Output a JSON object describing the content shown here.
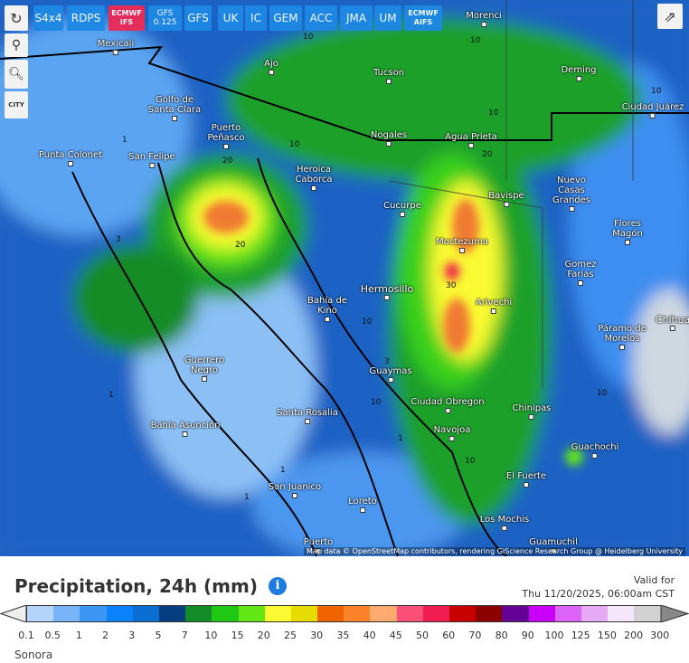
{
  "toolbar": {
    "models": [
      {
        "label": "S4x4",
        "active": false
      },
      {
        "label": "RDPS"
      },
      {
        "label": "ECMWF IFS",
        "active": true
      },
      {
        "label": "GFS 0.125"
      },
      {
        "label": "GFS"
      },
      {
        "label": "UK"
      },
      {
        "label": "IC"
      },
      {
        "label": "GEM"
      },
      {
        "label": "ACC"
      },
      {
        "label": "JMA"
      },
      {
        "label": "UM"
      },
      {
        "label": "ECMWF AIFS"
      }
    ],
    "refresh_icon": "refresh-icon",
    "share_icon": "share-icon"
  },
  "side_tools": {
    "location_icon": "map-pin-icon",
    "zoom_icon": "zoom-icon",
    "city_label": "CITY"
  },
  "map": {
    "cities": [
      "Mexicali",
      "Morenci",
      "Ajo",
      "Tucson",
      "Deming",
      "Ciudad Juárez",
      "Golfo de Santa Clara",
      "Puerto Peñasco",
      "Nogales",
      "Agua Prieta",
      "Punta Colonet",
      "San Felipe",
      "Heroica Caborca",
      "Bavispe",
      "Nuevo Casas Grandes",
      "Cucurpe",
      "Flores Magón",
      "Moctezuma",
      "Gomez Farias",
      "Hermosillo",
      "Bahía de Kino",
      "Arivechi",
      "Chihua",
      "Páramo de Morelos",
      "Guerrero Negro",
      "Guaymas",
      "Ciudad Obregon",
      "Chinipas",
      "Santa Rosalia",
      "Navojoa",
      "Bahía Asunción",
      "Guachochi",
      "El Fuerte",
      "San Juanico",
      "Loreto",
      "Los Mochis",
      "Puerto",
      "Guamuchil"
    ],
    "contours": [
      "10",
      "10",
      "10",
      "10",
      "20",
      "20",
      "20",
      "30",
      "10",
      "10",
      "1",
      "1",
      "1",
      "3",
      "10",
      "1",
      "3",
      "10",
      "1",
      "10"
    ],
    "attribution": "Map data © OpenStreetMap contributors, rendering GIScience Research Group @ Heidelberg University"
  },
  "legend": {
    "title": "Precipitation, 24h (mm)",
    "valid_label": "Valid for",
    "valid_time": "Thu 11/20/2025, 06:00am CST",
    "values": [
      "0.1",
      "0.5",
      "1",
      "2",
      "3",
      "5",
      "7",
      "10",
      "15",
      "20",
      "25",
      "30",
      "35",
      "40",
      "45",
      "50",
      "60",
      "70",
      "80",
      "90",
      "100",
      "125",
      "150",
      "200",
      "300"
    ],
    "colors": [
      "#b4d4fa",
      "#78b4f7",
      "#3c96f5",
      "#0a82fa",
      "#0a6ed2",
      "#063c80",
      "#148c28",
      "#1ec814",
      "#64e614",
      "#fafa32",
      "#e6dc00",
      "#f06400",
      "#fa8228",
      "#ffaa6e",
      "#fa5078",
      "#f01e50",
      "#c80000",
      "#8c0000",
      "#640096",
      "#c800fa",
      "#dc64fa",
      "#e6aaf5",
      "#f5e6fa",
      "#d2d2d2"
    ]
  },
  "region": "Sonora"
}
